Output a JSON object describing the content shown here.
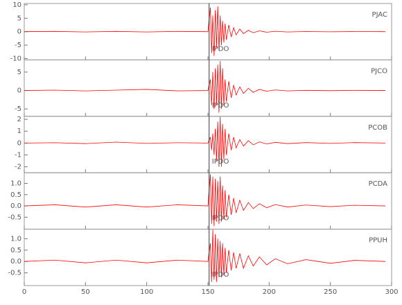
{
  "chart_data": [
    {
      "type": "line",
      "station": "PJAC",
      "annotation": "IPDO",
      "pick": 151,
      "color": "#ff0000",
      "x": [
        0,
        25,
        50,
        75,
        100,
        125,
        150,
        152,
        153,
        154,
        155,
        156,
        157,
        158,
        159,
        160,
        161,
        162,
        163,
        164,
        165,
        167,
        169,
        171,
        173,
        176,
        179,
        183,
        187,
        192,
        198,
        205,
        215,
        230,
        250,
        270,
        295
      ],
      "values": [
        0,
        0.1,
        -0.1,
        0.1,
        -0.1,
        0.1,
        0,
        9,
        -8,
        6,
        -9,
        8,
        -6,
        9.5,
        -7,
        6,
        -5,
        4,
        -4,
        3,
        -3,
        2.5,
        -2,
        1.5,
        -1.2,
        1,
        -0.7,
        0.5,
        -0.4,
        0.3,
        -0.2,
        0.15,
        -0.1,
        0.05,
        -0.05,
        0.05,
        0
      ],
      "xlim": [
        0,
        300
      ],
      "xticks": [
        0,
        50,
        100,
        150,
        200,
        250,
        300
      ],
      "ylim": [
        -10.5,
        10.5
      ],
      "yticks": [
        10,
        5,
        0,
        -5,
        -10
      ]
    },
    {
      "type": "line",
      "station": "PJCO",
      "annotation": "IPDO",
      "pick": 151,
      "color": "#ff0000",
      "x": [
        0,
        25,
        50,
        75,
        100,
        125,
        150,
        152,
        153,
        154,
        155,
        156,
        157,
        158,
        159,
        160,
        161,
        162,
        163,
        164,
        165,
        167,
        169,
        171,
        173,
        176,
        179,
        183,
        187,
        192,
        198,
        205,
        215,
        230,
        250,
        270,
        295
      ],
      "values": [
        0,
        0.1,
        -0.1,
        0.1,
        0.3,
        -0.1,
        0,
        3,
        -4,
        5,
        -5,
        6,
        -4,
        7,
        -6,
        8,
        -5,
        6,
        -4,
        3,
        -3,
        2.5,
        -2,
        1.5,
        -1.2,
        1,
        -0.8,
        0.6,
        -0.5,
        0.3,
        -0.2,
        0.15,
        -0.1,
        0.05,
        -0.05,
        0.05,
        0
      ],
      "xlim": [
        0,
        300
      ],
      "xticks": [
        0,
        50,
        100,
        150,
        200,
        250,
        300
      ],
      "ylim": [
        -7,
        8.3
      ],
      "yticks": [
        5,
        0,
        -5
      ]
    },
    {
      "type": "line",
      "station": "PCOB",
      "annotation": "IPDO",
      "pick": 151,
      "color": "#ff0000",
      "x": [
        0,
        25,
        50,
        75,
        100,
        125,
        150,
        152,
        153,
        154,
        155,
        156,
        157,
        158,
        159,
        160,
        161,
        162,
        163,
        164,
        165,
        167,
        169,
        171,
        173,
        176,
        179,
        183,
        187,
        192,
        198,
        205,
        215,
        230,
        250,
        270,
        295
      ],
      "values": [
        0,
        0.03,
        -0.05,
        0.08,
        -0.03,
        0.03,
        0,
        0.5,
        -0.6,
        0.8,
        -1,
        1.2,
        -1.5,
        1.8,
        -2,
        2.2,
        -2,
        1.6,
        -1.4,
        1.2,
        -1,
        0.8,
        -0.6,
        0.5,
        -0.4,
        0.3,
        -0.25,
        0.2,
        -0.15,
        0.1,
        -0.08,
        0.06,
        -0.05,
        0.04,
        -0.03,
        0.04,
        0
      ],
      "xlim": [
        0,
        300
      ],
      "xticks": [
        0,
        50,
        100,
        150,
        200,
        250,
        300
      ],
      "ylim": [
        -2.5,
        2.25
      ],
      "yticks": [
        2,
        1,
        0,
        -1,
        -2
      ]
    },
    {
      "type": "line",
      "station": "PCDA",
      "annotation": "IPDO",
      "pick": 151,
      "color": "#ff0000",
      "x": [
        0,
        25,
        50,
        75,
        100,
        125,
        150,
        152,
        153,
        154,
        155,
        156,
        157,
        158,
        159,
        160,
        161,
        162,
        163,
        164,
        165,
        167,
        169,
        171,
        173,
        176,
        179,
        183,
        187,
        192,
        198,
        205,
        215,
        230,
        250,
        270,
        295
      ],
      "values": [
        0,
        0.05,
        -0.05,
        0.05,
        -0.05,
        0.05,
        0,
        1.4,
        -0.8,
        1.3,
        -0.9,
        1.2,
        -0.7,
        1.1,
        -0.8,
        1.3,
        -0.7,
        0.9,
        -0.6,
        0.7,
        -0.5,
        0.5,
        -0.4,
        0.35,
        -0.3,
        0.25,
        -0.2,
        0.15,
        -0.12,
        0.1,
        -0.08,
        0.06,
        -0.05,
        0.04,
        -0.03,
        0.03,
        0
      ],
      "xlim": [
        0,
        300
      ],
      "xticks": [
        0,
        50,
        100,
        150,
        200,
        250,
        300
      ],
      "ylim": [
        -1.03,
        1.47
      ],
      "yticks": [
        {
          "value": 1,
          "label": "1.0"
        },
        0.5,
        {
          "value": 0,
          "label": "0.0"
        },
        -0.5
      ]
    },
    {
      "type": "line",
      "station": "PPUH",
      "annotation": "IPDO",
      "pick": 151,
      "color": "#ff0000",
      "x": [
        0,
        25,
        50,
        75,
        100,
        125,
        150,
        152,
        153,
        154,
        155,
        156,
        157,
        158,
        159,
        160,
        161,
        162,
        163,
        164,
        165,
        167,
        169,
        171,
        173,
        176,
        179,
        183,
        187,
        192,
        198,
        205,
        215,
        230,
        250,
        270,
        295
      ],
      "values": [
        0,
        0.06,
        -0.06,
        0.06,
        -0.06,
        0.06,
        0,
        0.8,
        -0.9,
        1.4,
        -0.8,
        1.2,
        -0.9,
        1,
        -0.7,
        0.9,
        -0.7,
        0.8,
        -0.6,
        0.6,
        -0.5,
        0.5,
        -0.4,
        0.4,
        -0.3,
        0.35,
        -0.3,
        0.25,
        -0.2,
        0.2,
        -0.15,
        0.12,
        -0.1,
        0.08,
        -0.08,
        0.05,
        0
      ],
      "xlim": [
        0,
        300
      ],
      "xticks": [
        0,
        50,
        100,
        150,
        200,
        250,
        300
      ],
      "ylim": [
        -1.06,
        1.42
      ],
      "yticks": [
        {
          "value": 1,
          "label": "1.0"
        },
        0.5,
        {
          "value": 0,
          "label": "0.0"
        },
        -0.5
      ]
    }
  ]
}
